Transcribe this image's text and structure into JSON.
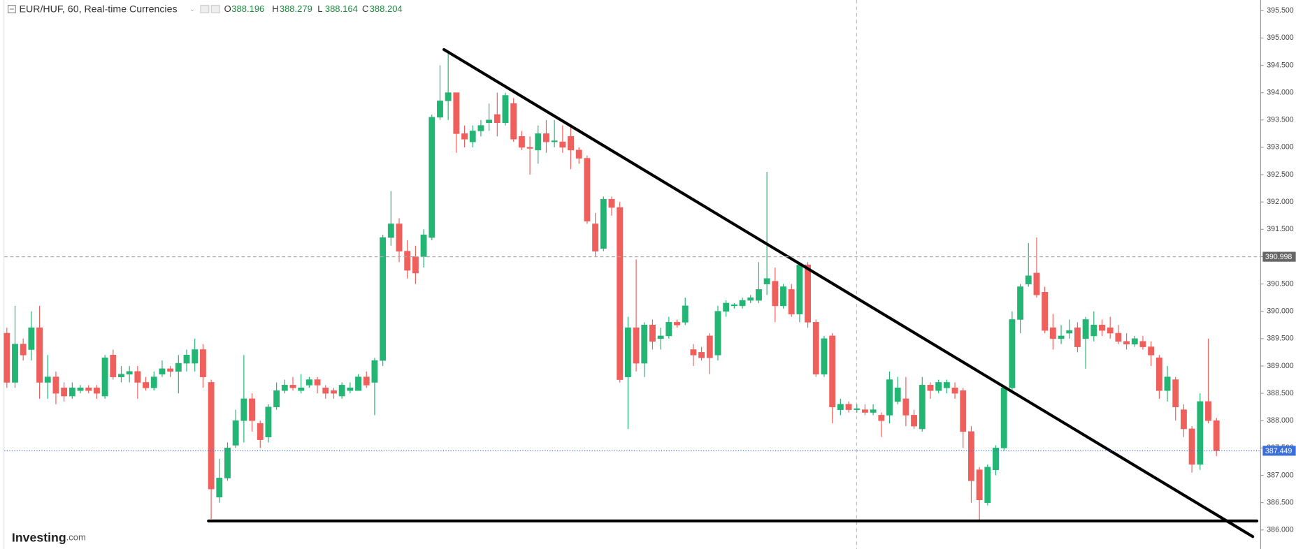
{
  "chart_data": {
    "type": "candlestick",
    "title": "EUR/HUF, 60, Real-time Currencies",
    "ohlc_legend": [
      {
        "key": "O",
        "value": "388.196"
      },
      {
        "key": "H",
        "value": "388.279"
      },
      {
        "key": "L",
        "value": "388.164"
      },
      {
        "key": "C",
        "value": "388.204"
      }
    ],
    "logo": {
      "name": "Investing",
      "suffix": ".com"
    },
    "up_color": "#22b573",
    "down_color": "#ef5f5c",
    "open": [
      389.6,
      388.7,
      389.4,
      389.3,
      389.7,
      388.7,
      388.8,
      388.6,
      388.45,
      388.55,
      388.6,
      388.6,
      388.45,
      389.2,
      388.8,
      388.85,
      388.9,
      388.7,
      388.6,
      388.85,
      388.95,
      388.9,
      389.05,
      389.05,
      389.3,
      388.7,
      386.6,
      386.95,
      387.55,
      388.0,
      388.4,
      387.95,
      387.7,
      388.25,
      388.55,
      388.65,
      388.55,
      388.65,
      388.75,
      388.6,
      388.55,
      388.45,
      388.55,
      388.55,
      388.8,
      388.7,
      389.1,
      391.35,
      391.6,
      391.1,
      391.0,
      391.0,
      391.35,
      393.55,
      393.85,
      394.0,
      393.25,
      393.1,
      393.3,
      393.45,
      393.6,
      393.45,
      393.8,
      393.2,
      393.0,
      392.95,
      393.25,
      393.1,
      393.1,
      393.2,
      392.95,
      392.8,
      391.6,
      391.15,
      392.05,
      391.9,
      388.8,
      389.7,
      389.05,
      389.75,
      389.5,
      389.55,
      389.8,
      389.8,
      389.3,
      389.25,
      389.55,
      389.2,
      390.0,
      390.1,
      390.1,
      390.2,
      390.2,
      390.5,
      390.55,
      390.1,
      390.4,
      389.95,
      390.85,
      389.8,
      388.85,
      389.55,
      388.2,
      388.3,
      388.2,
      388.2,
      388.15,
      388.1,
      388.1,
      388.35,
      388.4,
      388.1,
      387.85,
      388.65,
      388.55,
      388.6,
      388.6,
      388.55,
      387.8,
      387.1,
      386.5,
      387.1,
      387.5,
      388.6,
      389.85,
      390.5,
      390.7,
      390.35,
      389.7,
      389.5,
      389.6,
      389.7,
      389.5,
      389.55,
      389.75,
      389.7,
      389.6,
      389.45,
      389.4,
      389.45,
      389.35,
      389.15,
      388.55,
      388.75,
      388.2,
      387.85,
      387.2,
      388.35,
      388.0
    ],
    "high": [
      389.7,
      390.1,
      389.5,
      390.0,
      390.1,
      389.2,
      388.9,
      388.7,
      388.7,
      388.65,
      388.65,
      388.65,
      389.2,
      389.3,
      389.0,
      389.0,
      389.0,
      388.8,
      388.9,
      389.1,
      389.0,
      389.2,
      389.3,
      389.5,
      389.4,
      388.75,
      387.3,
      387.6,
      388.2,
      389.2,
      388.5,
      388.0,
      388.3,
      388.7,
      388.75,
      388.8,
      388.85,
      388.8,
      388.8,
      388.65,
      388.6,
      388.7,
      388.7,
      388.85,
      388.9,
      389.15,
      391.4,
      392.2,
      391.7,
      391.3,
      391.2,
      391.5,
      393.6,
      394.5,
      394.75,
      394.0,
      393.4,
      393.4,
      393.5,
      393.8,
      394.0,
      394.0,
      393.9,
      393.3,
      393.2,
      393.4,
      393.5,
      393.5,
      393.4,
      393.4,
      393.0,
      392.85,
      391.8,
      392.1,
      392.1,
      392.0,
      389.9,
      390.95,
      389.8,
      389.85,
      389.7,
      389.9,
      389.85,
      390.25,
      389.4,
      389.35,
      389.6,
      390.1,
      390.2,
      390.15,
      390.25,
      390.3,
      390.9,
      392.55,
      390.8,
      390.5,
      390.5,
      390.9,
      390.9,
      389.85,
      389.55,
      389.6,
      388.4,
      388.35,
      388.3,
      388.3,
      388.3,
      388.15,
      388.9,
      388.8,
      388.8,
      388.2,
      388.8,
      388.7,
      388.75,
      388.75,
      388.7,
      388.6,
      387.9,
      387.15,
      387.2,
      387.55,
      388.65,
      390.0,
      390.5,
      391.25,
      391.35,
      390.45,
      389.95,
      389.75,
      389.85,
      389.8,
      389.9,
      390.0,
      389.85,
      389.9,
      389.75,
      389.6,
      389.55,
      389.55,
      389.45,
      389.2,
      389.0,
      388.8,
      388.3,
      387.9,
      388.5,
      389.5,
      388.05
    ],
    "low": [
      388.6,
      388.6,
      389.1,
      389.1,
      388.4,
      388.4,
      388.3,
      388.35,
      388.4,
      388.5,
      388.5,
      388.4,
      388.4,
      388.75,
      388.7,
      388.7,
      388.4,
      388.55,
      388.55,
      388.8,
      388.8,
      388.5,
      388.9,
      388.9,
      388.6,
      386.2,
      386.5,
      386.9,
      387.5,
      387.6,
      387.8,
      387.5,
      387.6,
      388.2,
      388.5,
      388.55,
      388.5,
      388.6,
      388.5,
      388.4,
      388.4,
      388.4,
      388.5,
      388.55,
      388.6,
      388.1,
      389.0,
      391.2,
      390.9,
      390.6,
      390.5,
      390.8,
      391.3,
      393.5,
      393.5,
      392.9,
      393.0,
      393.0,
      393.2,
      393.3,
      393.2,
      393.4,
      393.1,
      392.95,
      392.5,
      392.7,
      392.9,
      393.0,
      392.9,
      392.6,
      392.7,
      391.6,
      391.0,
      391.1,
      391.75,
      388.7,
      387.85,
      388.9,
      388.8,
      389.3,
      389.3,
      389.5,
      389.7,
      389.75,
      389.0,
      389.1,
      388.85,
      389.1,
      389.9,
      390.05,
      390.05,
      390.15,
      390.15,
      390.3,
      389.8,
      390.05,
      389.9,
      389.8,
      389.7,
      388.8,
      388.8,
      387.95,
      388.1,
      388.15,
      388.15,
      388.1,
      388.1,
      387.7,
      387.95,
      388.3,
      387.9,
      387.85,
      387.8,
      388.4,
      388.5,
      388.5,
      388.4,
      387.5,
      386.5,
      386.15,
      386.45,
      387.0,
      387.45,
      388.5,
      389.6,
      390.45,
      390.25,
      389.6,
      389.3,
      389.4,
      389.5,
      389.25,
      388.95,
      389.45,
      389.55,
      389.5,
      389.4,
      389.3,
      389.35,
      389.3,
      389.0,
      388.4,
      388.35,
      388.0,
      387.7,
      387.05,
      387.1,
      387.95,
      387.35
    ],
    "close": [
      388.7,
      389.4,
      389.2,
      389.7,
      388.7,
      388.8,
      388.5,
      388.45,
      388.6,
      388.6,
      388.55,
      388.5,
      389.15,
      388.8,
      388.85,
      388.9,
      388.7,
      388.6,
      388.8,
      388.95,
      388.9,
      389.05,
      389.2,
      389.3,
      388.8,
      386.75,
      386.95,
      387.5,
      388.0,
      388.4,
      388.0,
      387.65,
      388.25,
      388.55,
      388.65,
      388.6,
      388.6,
      388.75,
      388.65,
      388.5,
      388.5,
      388.65,
      388.6,
      388.8,
      388.65,
      389.1,
      391.35,
      391.6,
      391.1,
      390.75,
      390.7,
      391.4,
      393.55,
      393.85,
      394.0,
      393.25,
      393.15,
      393.3,
      393.4,
      393.5,
      393.45,
      393.95,
      393.15,
      393.0,
      392.98,
      393.25,
      393.1,
      393.12,
      393.0,
      392.95,
      392.8,
      391.65,
      391.1,
      392.05,
      391.9,
      388.75,
      389.7,
      389.05,
      389.75,
      389.45,
      389.55,
      389.8,
      389.75,
      390.1,
      389.2,
      389.15,
      389.15,
      390.0,
      390.15,
      390.12,
      390.2,
      390.25,
      390.4,
      390.6,
      390.1,
      390.45,
      389.95,
      390.85,
      389.8,
      388.85,
      389.5,
      388.25,
      388.3,
      388.2,
      388.22,
      388.15,
      388.2,
      388.0,
      388.75,
      388.6,
      388.1,
      387.9,
      388.65,
      388.55,
      388.7,
      388.7,
      388.5,
      387.8,
      386.9,
      386.55,
      387.15,
      387.5,
      388.6,
      389.85,
      390.45,
      390.65,
      390.3,
      389.65,
      389.5,
      389.55,
      389.65,
      389.35,
      389.85,
      389.75,
      389.65,
      389.6,
      389.45,
      389.4,
      389.5,
      389.35,
      389.2,
      388.55,
      388.8,
      388.25,
      387.85,
      387.2,
      388.35,
      388.0,
      387.45
    ],
    "ylim": [
      385.652,
      395.695
    ],
    "yticks": [
      {
        "value": 386,
        "label": "386.000"
      },
      {
        "value": 386.5,
        "label": "386.500"
      },
      {
        "value": 387,
        "label": "387.000"
      },
      {
        "value": 387.5,
        "label": "387.500"
      },
      {
        "value": 388,
        "label": "388.000"
      },
      {
        "value": 388.5,
        "label": "388.500"
      },
      {
        "value": 389,
        "label": "389.000"
      },
      {
        "value": 389.5,
        "label": "389.500"
      },
      {
        "value": 390,
        "label": "390.000"
      },
      {
        "value": 390.5,
        "label": "390.500"
      },
      {
        "value": 391,
        "label": "391.000"
      },
      {
        "value": 391.5,
        "label": "391.500"
      },
      {
        "value": 392,
        "label": "392.000"
      },
      {
        "value": 392.5,
        "label": "392.500"
      },
      {
        "value": 393,
        "label": "393.000"
      },
      {
        "value": 393.5,
        "label": "393.500"
      },
      {
        "value": 394,
        "label": "394.000"
      },
      {
        "value": 394.5,
        "label": "394.500"
      },
      {
        "value": 395,
        "label": "395.000"
      },
      {
        "value": 395.5,
        "label": "395.500"
      }
    ],
    "price_lines": [
      {
        "value": 390.998,
        "color": "#666666",
        "style": "dashed"
      },
      {
        "value": 387.449,
        "color": "#3b6fd8",
        "style": "dotted"
      }
    ]
  }
}
